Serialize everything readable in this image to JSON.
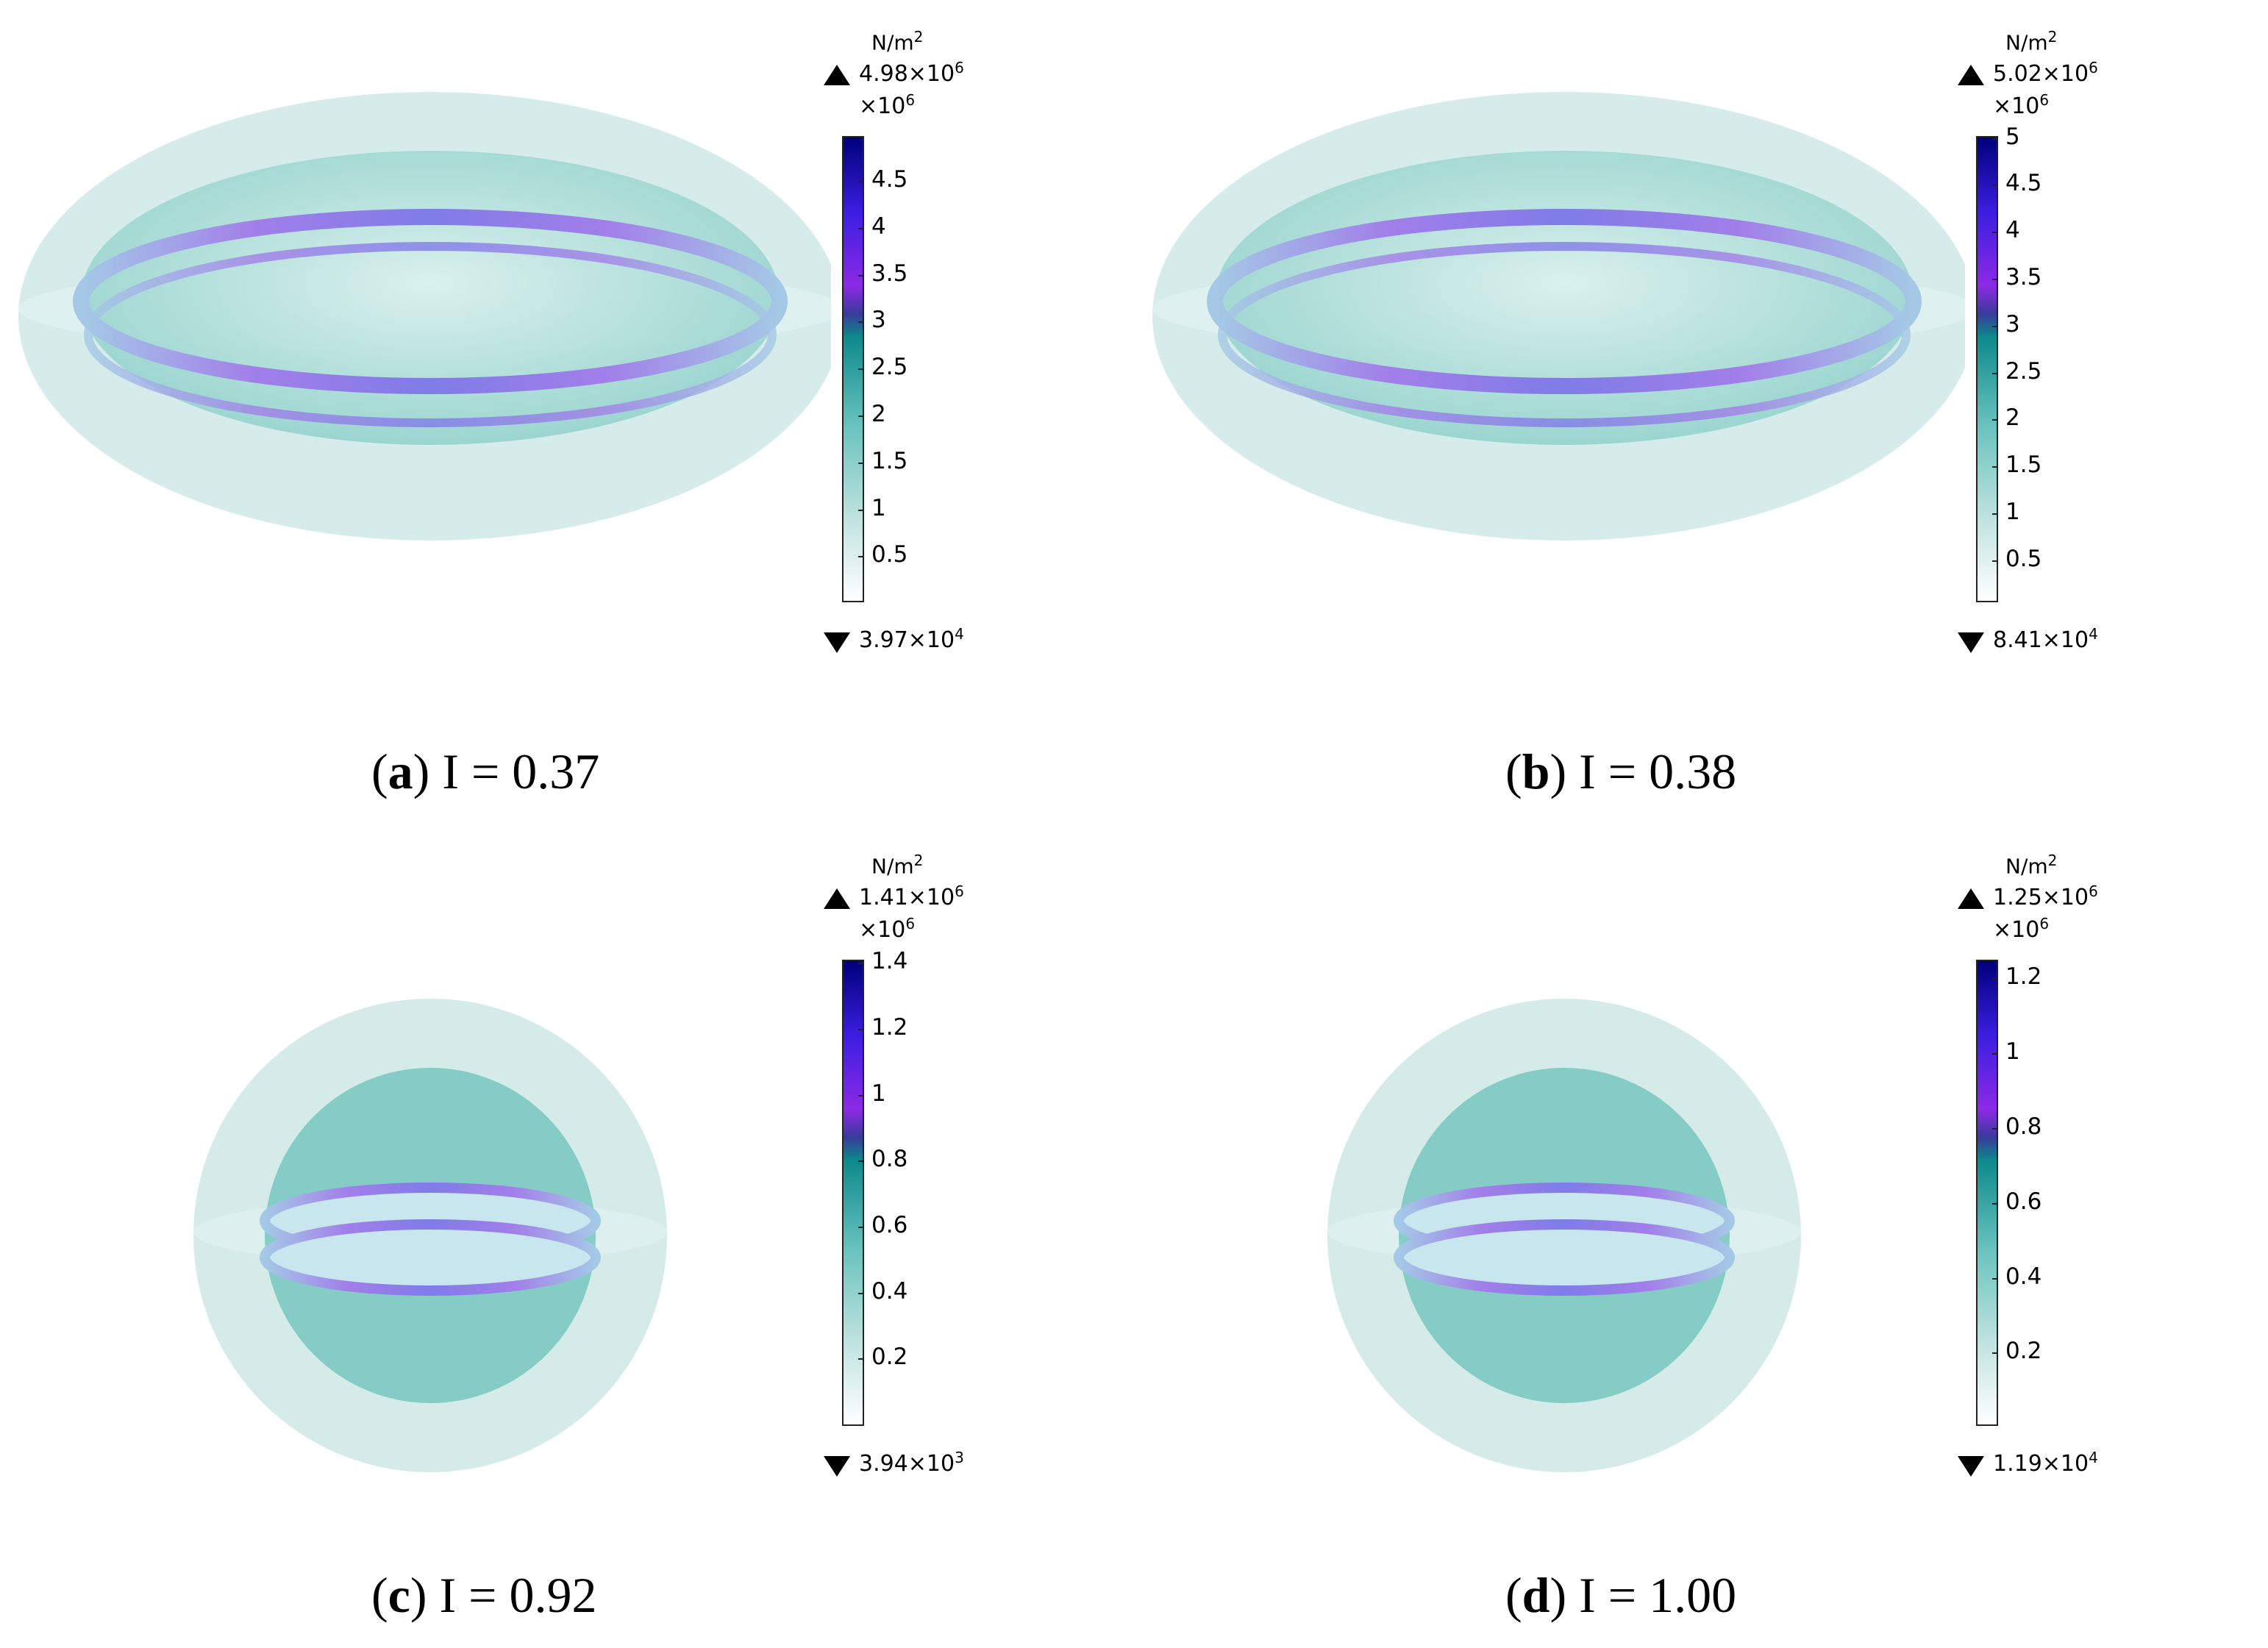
{
  "panels": [
    {
      "id": "a",
      "caption_letter": "a",
      "caption_rest": " I = 0.37",
      "unit_base": "N/m",
      "unit_exp": "2",
      "max_mantissa": "4.98×10",
      "max_exp": "6",
      "min_mantissa": "3.97×10",
      "min_exp": "4",
      "scale_base": "×10",
      "scale_exp": "6",
      "ticks": [
        "4.5",
        "4",
        "3.5",
        "3",
        "2.5",
        "2",
        "1.5",
        "1",
        "0.5"
      ],
      "tick_values": [
        4.5,
        4,
        3.5,
        3,
        2.5,
        2,
        1.5,
        1,
        0.5
      ],
      "range": [
        0.0397,
        4.98
      ],
      "shape": "oblate"
    },
    {
      "id": "b",
      "caption_letter": "b",
      "caption_rest": " I = 0.38",
      "unit_base": "N/m",
      "unit_exp": "2",
      "max_mantissa": "5.02×10",
      "max_exp": "6",
      "min_mantissa": "8.41×10",
      "min_exp": "4",
      "scale_base": "×10",
      "scale_exp": "6",
      "ticks": [
        "5",
        "4.5",
        "4",
        "3.5",
        "3",
        "2.5",
        "2",
        "1.5",
        "1",
        "0.5"
      ],
      "tick_values": [
        5,
        4.5,
        4,
        3.5,
        3,
        2.5,
        2,
        1.5,
        1,
        0.5
      ],
      "range": [
        0.0841,
        5.02
      ],
      "shape": "oblate"
    },
    {
      "id": "c",
      "caption_letter": "c",
      "caption_rest": " I = 0.92",
      "unit_base": "N/m",
      "unit_exp": "2",
      "max_mantissa": "1.41×10",
      "max_exp": "6",
      "min_mantissa": "3.94×10",
      "min_exp": "3",
      "scale_base": "×10",
      "scale_exp": "6",
      "ticks": [
        "1.4",
        "1.2",
        "1",
        "0.8",
        "0.6",
        "0.4",
        "0.2"
      ],
      "tick_values": [
        1.4,
        1.2,
        1,
        0.8,
        0.6,
        0.4,
        0.2
      ],
      "range": [
        0.00394,
        1.41
      ],
      "shape": "sphere"
    },
    {
      "id": "d",
      "caption_letter": "d",
      "caption_rest": " I = 1.00",
      "unit_base": "N/m",
      "unit_exp": "2",
      "max_mantissa": "1.25×10",
      "max_exp": "6",
      "min_mantissa": "1.19×10",
      "min_exp": "4",
      "scale_base": "×10",
      "scale_exp": "6",
      "ticks": [
        "1.2",
        "1",
        "0.8",
        "0.6",
        "0.4",
        "0.2"
      ],
      "tick_values": [
        1.2,
        1,
        0.8,
        0.6,
        0.4,
        0.2
      ],
      "range": [
        0.0119,
        1.25
      ],
      "shape": "sphere"
    }
  ],
  "colors": {
    "outer_shell": "#cfe9e6",
    "inner_body": "#9fd7d2",
    "stress_band": "#a07ee8"
  }
}
